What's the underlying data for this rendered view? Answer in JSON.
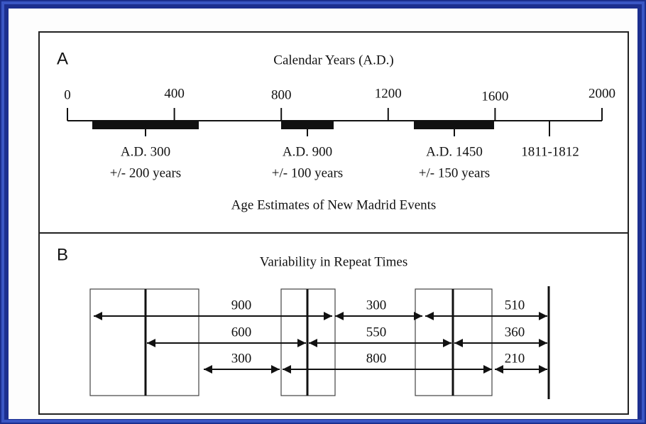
{
  "panel_a": {
    "letter": "A",
    "title": "Calendar Years (A.D.)",
    "axis_ticks": [
      0,
      400,
      800,
      1200,
      1600,
      2000
    ],
    "events": [
      {
        "date": "A.D. 300",
        "range": "+/- 200 years"
      },
      {
        "date": "A.D. 900",
        "range": "+/- 100 years"
      },
      {
        "date": "A.D. 1450",
        "range": "+/- 150 years"
      },
      {
        "date": "1811-1812"
      }
    ],
    "caption": "Age Estimates of New Madrid Events"
  },
  "panel_b": {
    "letter": "B",
    "title": "Variability in Repeat Times",
    "rows": [
      [
        "900",
        "300",
        "510"
      ],
      [
        "600",
        "550",
        "360"
      ],
      [
        "300",
        "800",
        "210"
      ]
    ]
  }
}
